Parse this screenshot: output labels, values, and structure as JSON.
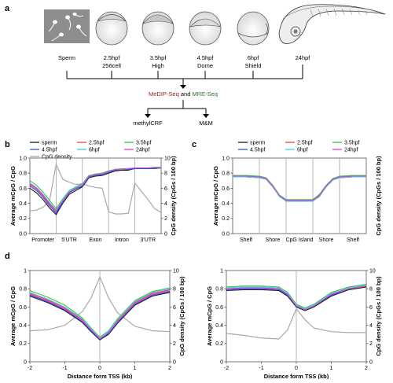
{
  "figure": {
    "panel_a": {
      "letter": "a",
      "stages": [
        {
          "name": "Sperm",
          "sub": ""
        },
        {
          "name": "2.5hpf",
          "sub": "256cell"
        },
        {
          "name": "3.5hpf",
          "sub": "High"
        },
        {
          "name": "4.5hpf",
          "sub": "Dome"
        },
        {
          "name": "6hpf",
          "sub": "Shield"
        },
        {
          "name": "24hpf",
          "sub": ""
        }
      ],
      "method_prefix": "MeDIP-Seq",
      "method_and": " and ",
      "method_suffix": "MRE-Seq",
      "outputs": [
        "methylCRF",
        "M&M"
      ]
    },
    "panel_b": {
      "letter": "b",
      "xcats": [
        "Promoter",
        "5'UTR",
        "Exon",
        "Intron",
        "3'UTR"
      ]
    },
    "panel_c": {
      "letter": "c",
      "xcats": [
        "Shelf",
        "Shore",
        "CpG Island",
        "Shore",
        "Shelf"
      ]
    },
    "panel_d": {
      "letter": "d"
    },
    "legend": {
      "sperm": "sperm",
      "h25": "2.5hpf",
      "h35": "3.5hpf",
      "h45": "4.5hpf",
      "h6": "6hpf",
      "h24": "24hpf",
      "cpg": "CpG density"
    },
    "axis": {
      "ylabel_left": "Average mCpG / CpG",
      "ylabel_right": "CpG density (CpGs / 100 bp)",
      "xlabel_tss": "Distance form TSS (kb)"
    },
    "colors": {
      "sperm": "#1a1a1a",
      "h25": "#f04040",
      "h35": "#40c040",
      "h45": "#3050e0",
      "h6": "#40d8e0",
      "h24": "#e040e0",
      "cpg": "#a8a8a8"
    }
  },
  "chart_data": [
    {
      "panel": "b",
      "type": "line",
      "ylim": [
        0,
        1
      ],
      "y2lim": [
        0,
        10
      ],
      "yticks": [
        "0.0",
        "0.2",
        "0.4",
        "0.6",
        "0.8",
        "1.0"
      ],
      "y2ticks": [
        "0",
        "2",
        "4",
        "6",
        "8",
        "10"
      ],
      "categories": [
        "Promoter",
        "5'UTR",
        "Exon",
        "Intron",
        "3'UTR"
      ],
      "x": [
        0,
        0.25,
        0.5,
        0.75,
        1.0,
        1.25,
        1.5,
        1.75,
        2.0,
        2.25,
        2.5,
        2.75,
        3.0,
        3.25,
        3.5,
        3.75,
        4.0,
        4.25,
        4.5,
        4.75,
        5.0
      ],
      "series": [
        {
          "name": "sperm",
          "values": [
            0.6,
            0.54,
            0.45,
            0.34,
            0.25,
            0.4,
            0.52,
            0.57,
            0.62,
            0.74,
            0.76,
            0.77,
            0.8,
            0.83,
            0.84,
            0.84,
            0.86,
            0.86,
            0.86,
            0.86,
            0.87
          ]
        },
        {
          "name": "2.5hpf",
          "values": [
            0.65,
            0.59,
            0.5,
            0.39,
            0.29,
            0.43,
            0.55,
            0.6,
            0.64,
            0.76,
            0.78,
            0.79,
            0.82,
            0.85,
            0.85,
            0.86,
            0.87,
            0.87,
            0.87,
            0.87,
            0.87
          ]
        },
        {
          "name": "3.5hpf",
          "values": [
            0.7,
            0.64,
            0.55,
            0.44,
            0.33,
            0.46,
            0.57,
            0.62,
            0.66,
            0.77,
            0.79,
            0.8,
            0.83,
            0.85,
            0.86,
            0.86,
            0.87,
            0.87,
            0.87,
            0.88,
            0.88
          ]
        },
        {
          "name": "4.5hpf",
          "values": [
            0.63,
            0.57,
            0.48,
            0.37,
            0.27,
            0.42,
            0.54,
            0.59,
            0.63,
            0.75,
            0.77,
            0.78,
            0.81,
            0.84,
            0.85,
            0.85,
            0.86,
            0.86,
            0.86,
            0.86,
            0.87
          ]
        },
        {
          "name": "6hpf",
          "values": [
            0.67,
            0.61,
            0.52,
            0.41,
            0.31,
            0.44,
            0.56,
            0.61,
            0.65,
            0.76,
            0.78,
            0.79,
            0.82,
            0.85,
            0.85,
            0.86,
            0.87,
            0.87,
            0.87,
            0.87,
            0.87
          ]
        },
        {
          "name": "24hpf",
          "values": [
            0.66,
            0.6,
            0.51,
            0.4,
            0.3,
            0.43,
            0.55,
            0.6,
            0.64,
            0.76,
            0.78,
            0.79,
            0.82,
            0.85,
            0.85,
            0.86,
            0.87,
            0.87,
            0.87,
            0.87,
            0.87
          ]
        },
        {
          "name": "CpG density",
          "axis": "right",
          "values": [
            3.0,
            3.1,
            3.5,
            4.3,
            9.2,
            7.2,
            6.8,
            6.5,
            6.6,
            6.3,
            6.1,
            6.0,
            2.9,
            2.6,
            2.6,
            2.7,
            6.7,
            5.6,
            4.5,
            3.3,
            2.8
          ]
        }
      ]
    },
    {
      "panel": "c",
      "type": "line",
      "ylim": [
        0,
        1
      ],
      "yticks": [
        "0.0",
        "0.2",
        "0.4",
        "0.6",
        "0.8",
        "1.0"
      ],
      "categories": [
        "Shelf",
        "Shore",
        "CpG Island",
        "Shore",
        "Shelf"
      ],
      "x": [
        0,
        0.5,
        1.0,
        1.25,
        1.5,
        1.75,
        2.0,
        2.5,
        3.0,
        3.25,
        3.5,
        3.75,
        4.0,
        4.5,
        5.0
      ],
      "series": [
        {
          "name": "sperm",
          "values": [
            0.75,
            0.75,
            0.74,
            0.72,
            0.62,
            0.5,
            0.43,
            0.43,
            0.43,
            0.5,
            0.62,
            0.71,
            0.74,
            0.75,
            0.75
          ]
        },
        {
          "name": "2.5hpf",
          "values": [
            0.76,
            0.76,
            0.75,
            0.73,
            0.63,
            0.5,
            0.44,
            0.44,
            0.44,
            0.51,
            0.63,
            0.72,
            0.75,
            0.76,
            0.76
          ]
        },
        {
          "name": "3.5hpf",
          "values": [
            0.77,
            0.77,
            0.76,
            0.74,
            0.64,
            0.51,
            0.45,
            0.45,
            0.45,
            0.52,
            0.64,
            0.73,
            0.76,
            0.77,
            0.77
          ]
        },
        {
          "name": "4.5hpf",
          "values": [
            0.76,
            0.76,
            0.75,
            0.73,
            0.63,
            0.5,
            0.44,
            0.44,
            0.44,
            0.5,
            0.63,
            0.72,
            0.75,
            0.76,
            0.76
          ]
        },
        {
          "name": "6hpf",
          "values": [
            0.75,
            0.75,
            0.74,
            0.72,
            0.62,
            0.49,
            0.43,
            0.43,
            0.43,
            0.49,
            0.62,
            0.71,
            0.74,
            0.75,
            0.75
          ]
        },
        {
          "name": "24hpf",
          "values": [
            0.76,
            0.76,
            0.75,
            0.73,
            0.63,
            0.5,
            0.44,
            0.44,
            0.44,
            0.5,
            0.63,
            0.72,
            0.75,
            0.76,
            0.76
          ]
        }
      ]
    },
    {
      "panel": "d-left",
      "type": "line",
      "xlabel": "Distance form TSS (kb)",
      "xlim": [
        -2,
        2
      ],
      "ylim": [
        0,
        1
      ],
      "y2lim": [
        0,
        10
      ],
      "xticks": [
        "-2",
        "-1",
        "0",
        "1",
        "2"
      ],
      "yticks": [
        "0",
        "0.2",
        "0.4",
        "0.6",
        "0.8",
        "1"
      ],
      "y2ticks": [
        "0",
        "2",
        "4",
        "6",
        "8",
        "10"
      ],
      "x": [
        -2,
        -1.5,
        -1,
        -0.5,
        -0.25,
        0,
        0.25,
        0.5,
        1,
        1.5,
        2
      ],
      "series": [
        {
          "name": "sperm",
          "values": [
            0.72,
            0.65,
            0.56,
            0.43,
            0.33,
            0.24,
            0.3,
            0.42,
            0.62,
            0.72,
            0.76
          ]
        },
        {
          "name": "2.5hpf",
          "values": [
            0.75,
            0.68,
            0.59,
            0.46,
            0.36,
            0.26,
            0.33,
            0.45,
            0.65,
            0.75,
            0.79
          ]
        },
        {
          "name": "3.5hpf",
          "values": [
            0.78,
            0.71,
            0.62,
            0.48,
            0.37,
            0.27,
            0.34,
            0.47,
            0.67,
            0.77,
            0.81
          ]
        },
        {
          "name": "4.5hpf",
          "values": [
            0.73,
            0.66,
            0.57,
            0.44,
            0.34,
            0.25,
            0.31,
            0.43,
            0.63,
            0.73,
            0.77
          ]
        },
        {
          "name": "6hpf",
          "values": [
            0.76,
            0.69,
            0.6,
            0.47,
            0.36,
            0.26,
            0.33,
            0.46,
            0.66,
            0.76,
            0.8
          ]
        },
        {
          "name": "24hpf",
          "values": [
            0.74,
            0.67,
            0.58,
            0.45,
            0.35,
            0.25,
            0.32,
            0.44,
            0.64,
            0.74,
            0.78
          ]
        },
        {
          "name": "CpG density",
          "axis": "right",
          "values": [
            3.4,
            3.5,
            4.0,
            5.5,
            7.0,
            9.3,
            7.0,
            5.4,
            3.9,
            3.4,
            3.3
          ]
        }
      ]
    },
    {
      "panel": "d-right",
      "type": "line",
      "xlabel": "Distance form TSS (kb)",
      "xlim": [
        -2,
        2
      ],
      "ylim": [
        0,
        1
      ],
      "y2lim": [
        0,
        10
      ],
      "xticks": [
        "-2",
        "-1",
        "0",
        "1",
        "2"
      ],
      "yticks": [
        "0",
        "0.2",
        "0.4",
        "0.6",
        "0.8",
        "1"
      ],
      "y2ticks": [
        "0",
        "2",
        "4",
        "6",
        "8",
        "10"
      ],
      "x": [
        -2,
        -1.5,
        -1,
        -0.5,
        -0.25,
        0,
        0.25,
        0.5,
        1,
        1.5,
        2
      ],
      "series": [
        {
          "name": "sperm",
          "values": [
            0.78,
            0.79,
            0.79,
            0.78,
            0.72,
            0.6,
            0.56,
            0.6,
            0.72,
            0.79,
            0.82
          ]
        },
        {
          "name": "2.5hpf",
          "values": [
            0.8,
            0.81,
            0.81,
            0.8,
            0.74,
            0.62,
            0.58,
            0.62,
            0.74,
            0.81,
            0.84
          ]
        },
        {
          "name": "3.5hpf",
          "values": [
            0.82,
            0.83,
            0.83,
            0.82,
            0.76,
            0.63,
            0.59,
            0.63,
            0.76,
            0.82,
            0.85
          ]
        },
        {
          "name": "4.5hpf",
          "values": [
            0.79,
            0.8,
            0.8,
            0.79,
            0.73,
            0.61,
            0.57,
            0.61,
            0.73,
            0.8,
            0.83
          ]
        },
        {
          "name": "6hpf",
          "values": [
            0.81,
            0.82,
            0.82,
            0.81,
            0.75,
            0.62,
            0.58,
            0.62,
            0.75,
            0.81,
            0.84
          ]
        },
        {
          "name": "24hpf",
          "values": [
            0.8,
            0.81,
            0.81,
            0.8,
            0.74,
            0.61,
            0.57,
            0.61,
            0.74,
            0.8,
            0.83
          ]
        },
        {
          "name": "CpG density",
          "axis": "right",
          "values": [
            3.1,
            2.9,
            2.6,
            2.5,
            3.5,
            5.8,
            4.6,
            3.7,
            3.3,
            3.2,
            3.2
          ]
        }
      ]
    }
  ]
}
